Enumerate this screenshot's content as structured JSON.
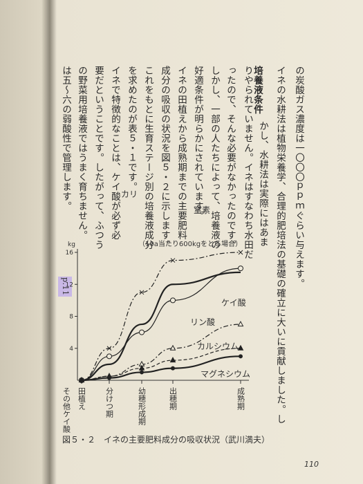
{
  "text_columns": [
    "の炭酸ガス濃度は一〇〇〇ｐｐｍぐらい与えます。",
    "イネの水耕法は植物栄養学、合理的肥培法の基礎の確立に大いに貢献しました。し",
    "かし、水耕法は実際にはあま",
    "りやられていません。イネはすなわち水田だ",
    "ったので、そんな必要がなかったのです。",
    "しかし、一部の人たちによって、培養液の",
    "好適条件が明らかにされています。",
    "イネの田植えから成熟期までの主要肥料",
    "成分の吸収の状況を図５・２に示します。",
    "これをもとに生育ステージ別の培養液成分",
    "を求めたのが表５・１です。",
    "イネで特徴的なことは、ケイ酸が必ず必",
    "要だということです。したがって、ふつう",
    "の野菜用培養液ではうまく育ちません。",
    "は五～六の弱酸性で管理します。"
  ],
  "heading": "培養液条件",
  "page_ref": "p.11",
  "page_number": "110",
  "figure": {
    "type": "line",
    "note": "（10a当たり600kgをとる場合）",
    "y_unit": "kg",
    "caption": "図５・２　イネの主要肥料成分の吸収状況（武川満夫）",
    "categories": [
      "田植え",
      "分けつ期",
      "幼穂形成期",
      "出穂期",
      "成熟期"
    ],
    "other_label": "その他ケイ酸",
    "ylim": [
      0,
      16
    ],
    "yticks": [
      4,
      8,
      12,
      16
    ],
    "series": [
      {
        "name": "カリ",
        "style": "dashdot",
        "marker": "x",
        "values": [
          0,
          4,
          11,
          15,
          16
        ]
      },
      {
        "name": "窒素",
        "style": "solid",
        "marker": "circle",
        "values": [
          0,
          3,
          6,
          10,
          14
        ]
      },
      {
        "name": "ケイ酸",
        "style": "thick",
        "marker": "none",
        "values": [
          0,
          2,
          7,
          12,
          13.5
        ]
      },
      {
        "name": "リン酸",
        "style": "dashdot",
        "marker": "triangle",
        "values": [
          0,
          0.5,
          2,
          4,
          7
        ]
      },
      {
        "name": "カルシウム",
        "style": "dashed",
        "marker": "filled-triangle",
        "values": [
          0,
          0.5,
          1.5,
          2.5,
          4
        ]
      },
      {
        "name": "マグネシウム",
        "style": "thick",
        "marker": "dot",
        "values": [
          0,
          0.3,
          1,
          1.5,
          3
        ]
      }
    ]
  }
}
